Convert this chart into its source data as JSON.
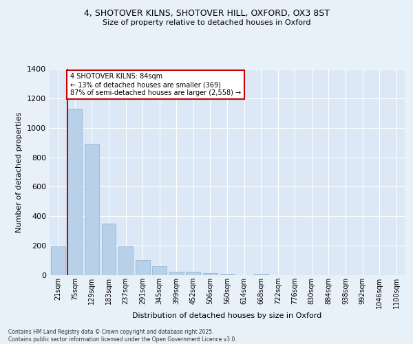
{
  "title_line1": "4, SHOTOVER KILNS, SHOTOVER HILL, OXFORD, OX3 8ST",
  "title_line2": "Size of property relative to detached houses in Oxford",
  "xlabel": "Distribution of detached houses by size in Oxford",
  "ylabel": "Number of detached properties",
  "categories": [
    "21sqm",
    "75sqm",
    "129sqm",
    "183sqm",
    "237sqm",
    "291sqm",
    "345sqm",
    "399sqm",
    "452sqm",
    "506sqm",
    "560sqm",
    "614sqm",
    "668sqm",
    "722sqm",
    "776sqm",
    "830sqm",
    "884sqm",
    "938sqm",
    "992sqm",
    "1046sqm",
    "1100sqm"
  ],
  "values": [
    196,
    1130,
    890,
    350,
    195,
    105,
    62,
    25,
    22,
    14,
    8,
    0,
    10,
    0,
    0,
    0,
    0,
    0,
    0,
    0,
    0
  ],
  "bar_color": "#b8d0e8",
  "bar_edge_color": "#8ab0d0",
  "highlight_line_color": "#cc0000",
  "annotation_box_color": "#cc0000",
  "annotation_box_facecolor": "white",
  "annotation_box_text_line1": "4 SHOTOVER KILNS: 84sqm",
  "annotation_box_text_line2": "← 13% of detached houses are smaller (369)",
  "annotation_box_text_line3": "87% of semi-detached houses are larger (2,558) →",
  "footer_line1": "Contains HM Land Registry data © Crown copyright and database right 2025.",
  "footer_line2": "Contains public sector information licensed under the Open Government Licence v3.0.",
  "background_color": "#e8f0f8",
  "plot_background_color": "#dce8f5",
  "ylim": [
    0,
    1400
  ],
  "yticks": [
    0,
    200,
    400,
    600,
    800,
    1000,
    1200,
    1400
  ]
}
